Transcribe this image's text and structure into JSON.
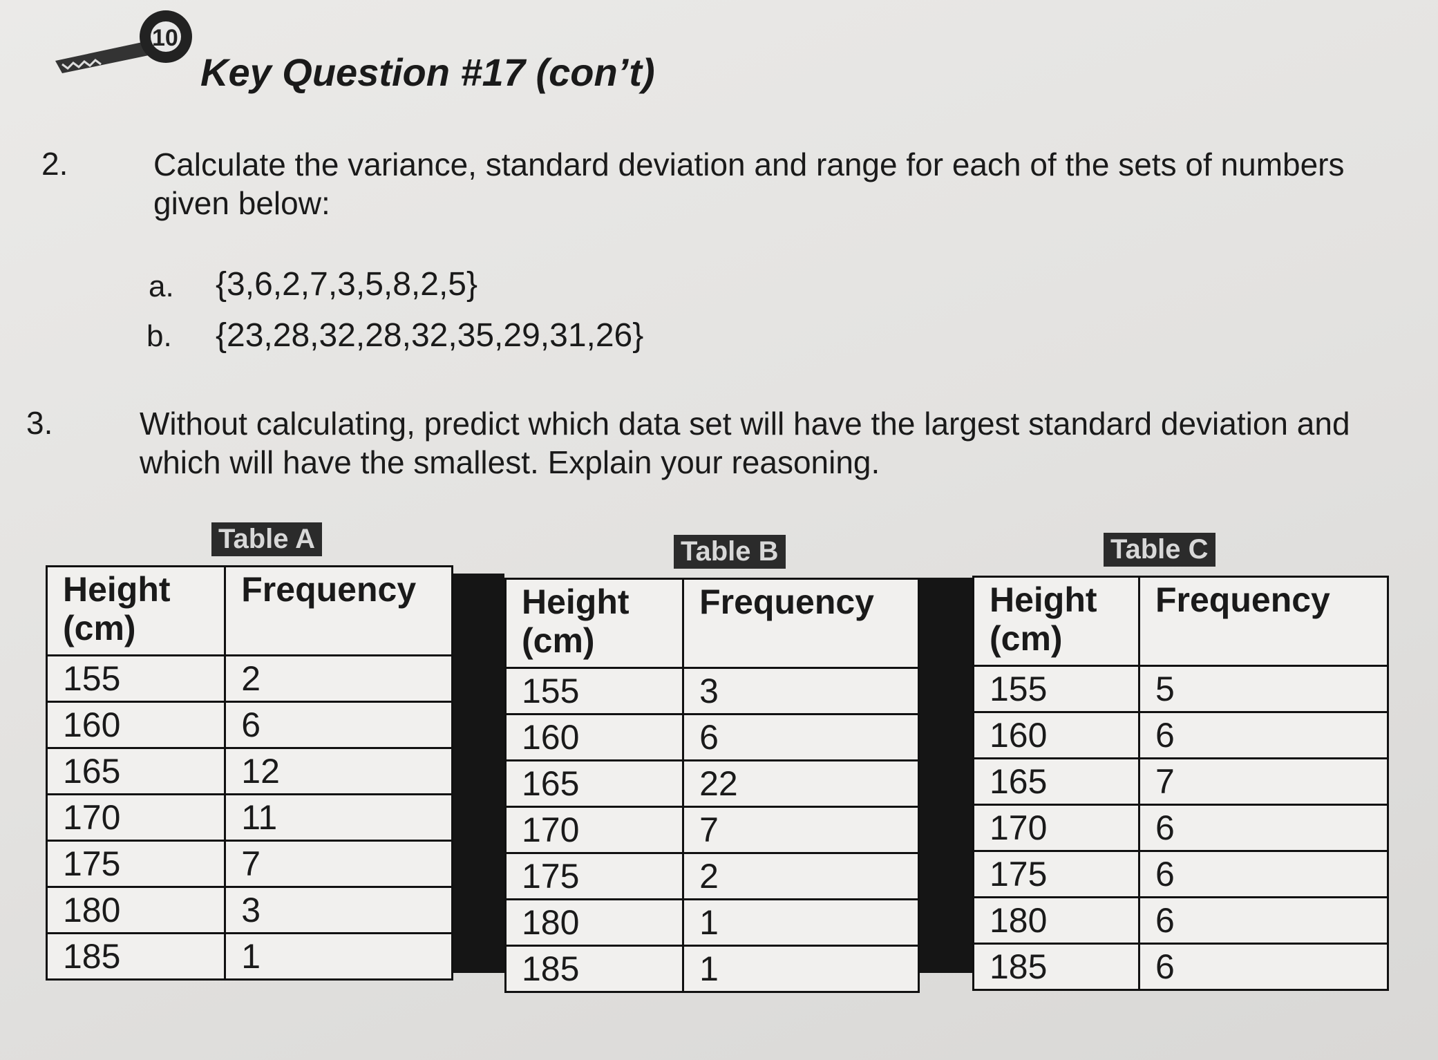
{
  "header": {
    "title": "Key Question #17 (con’t)"
  },
  "questions": [
    {
      "number": "2.",
      "text": "Calculate the variance, standard deviation and range for each of the sets of numbers given below:",
      "items": [
        {
          "label": "a.",
          "set": "{3,6,2,7,3,5,8,2,5}"
        },
        {
          "label": "b.",
          "set": "{23,28,32,28,32,35,29,31,26}"
        }
      ]
    },
    {
      "number": "3.",
      "text": "Without calculating, predict which data set will have the largest standard deviation and which will have the smallest.  Explain your reasoning."
    }
  ],
  "tables": [
    {
      "title": "Table A",
      "columns": [
        "Height (cm)",
        "Frequency"
      ],
      "rows": [
        [
          155,
          2
        ],
        [
          160,
          6
        ],
        [
          165,
          12
        ],
        [
          170,
          11
        ],
        [
          175,
          7
        ],
        [
          180,
          3
        ],
        [
          185,
          1
        ]
      ]
    },
    {
      "title": "Table B",
      "columns": [
        "Height (cm)",
        "Frequency"
      ],
      "rows": [
        [
          155,
          3
        ],
        [
          160,
          6
        ],
        [
          165,
          22
        ],
        [
          170,
          7
        ],
        [
          175,
          2
        ],
        [
          180,
          1
        ],
        [
          185,
          1
        ]
      ]
    },
    {
      "title": "Table C",
      "columns": [
        "Height (cm)",
        "Frequency"
      ],
      "rows": [
        [
          155,
          5
        ],
        [
          160,
          6
        ],
        [
          165,
          7
        ],
        [
          170,
          6
        ],
        [
          175,
          6
        ],
        [
          180,
          6
        ],
        [
          185,
          6
        ]
      ]
    }
  ]
}
